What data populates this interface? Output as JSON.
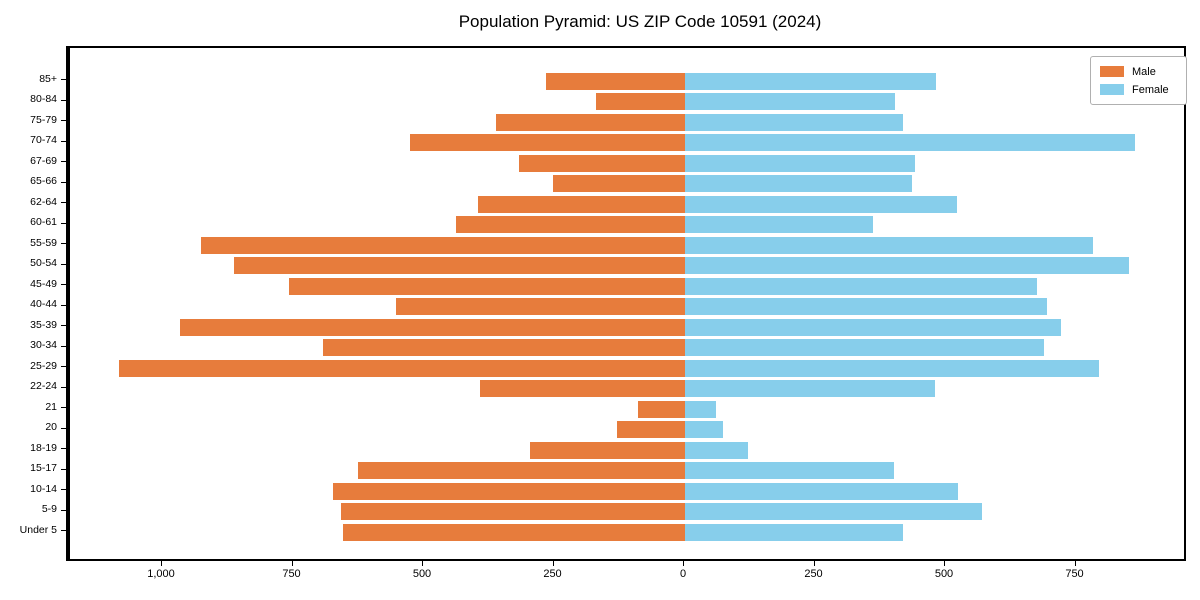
{
  "title": "Population Pyramid: US ZIP Code 10591 (2024)",
  "legend": {
    "male_label": "Male",
    "female_label": "Female"
  },
  "colors": {
    "male": "#e77c3c",
    "female": "#87ceeb",
    "axis": "#000000",
    "background": "#ffffff"
  },
  "chart_data": {
    "type": "bar",
    "subtype": "population-pyramid",
    "title": "Population Pyramid: US ZIP Code 10591 (2024)",
    "categories_top_to_bottom": [
      "85+",
      "80-84",
      "75-79",
      "70-74",
      "67-69",
      "65-66",
      "62-64",
      "60-61",
      "55-59",
      "50-54",
      "45-49",
      "40-44",
      "35-39",
      "30-34",
      "25-29",
      "22-24",
      "21",
      "20",
      "18-19",
      "15-17",
      "10-14",
      "5-9",
      "Under 5"
    ],
    "series": [
      {
        "name": "Male",
        "side": "left",
        "color": "#e77c3c",
        "values": [
          266,
          170,
          363,
          526,
          318,
          253,
          397,
          439,
          928,
          864,
          759,
          553,
          968,
          694,
          1085,
          393,
          90,
          131,
          296,
          627,
          674,
          659,
          656
        ]
      },
      {
        "name": "Female",
        "side": "right",
        "color": "#87ceeb",
        "values": [
          480,
          402,
          418,
          863,
          441,
          434,
          522,
          361,
          781,
          851,
          675,
          694,
          720,
          687,
          794,
          478,
          59,
          73,
          120,
          401,
          523,
          569,
          418
        ]
      }
    ],
    "x_tick_values": [
      -1000,
      -750,
      -500,
      -250,
      0,
      250,
      500,
      750
    ],
    "x_tick_labels": [
      "1,000",
      "750",
      "500",
      "250",
      "0",
      "250",
      "500",
      "750"
    ],
    "xlim": [
      -1182,
      962
    ],
    "grid": false,
    "legend_position": "upper right",
    "center_axis_value": 0
  }
}
